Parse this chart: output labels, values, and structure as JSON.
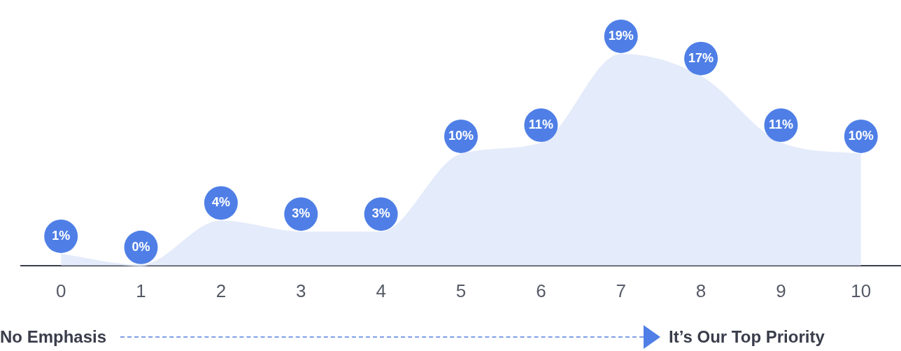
{
  "chart_data": {
    "type": "area",
    "categories": [
      "0",
      "1",
      "2",
      "3",
      "4",
      "5",
      "6",
      "7",
      "8",
      "9",
      "10"
    ],
    "series": [
      {
        "color": "#e4ebfa",
        "values": [
          1,
          0,
          4,
          3,
          3,
          10,
          11,
          19,
          17,
          11,
          10
        ],
        "value_labels": [
          "1%",
          "0%",
          "4%",
          "3%",
          "3%",
          "10%",
          "11%",
          "19%",
          "17%",
          "11%",
          "10%"
        ]
      }
    ],
    "legend": false,
    "grid": false,
    "tick_labels": "x",
    "annotations": [
      "No Emphasis",
      "It’s Our Top Priority"
    ]
  }
}
